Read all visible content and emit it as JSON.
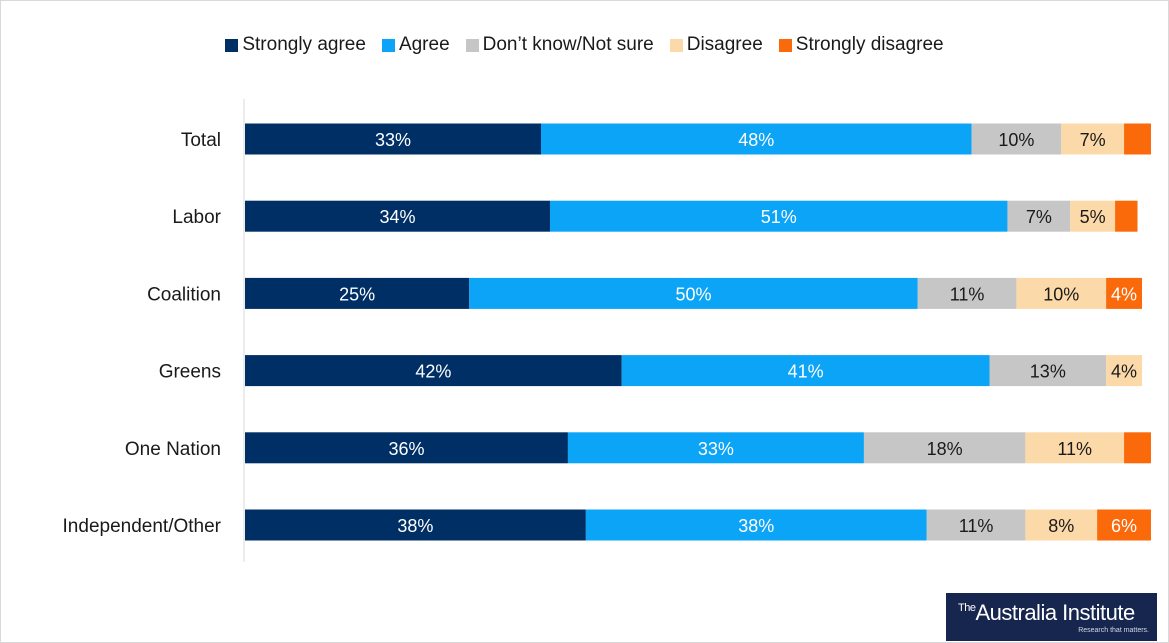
{
  "colors": {
    "strongly_agree": "#002f66",
    "agree": "#0ba4f6",
    "dont_know": "#c6c6c6",
    "disagree": "#fcd9a8",
    "strongly_disagree": "#fa6a0a"
  },
  "chart_data": {
    "type": "bar",
    "orientation": "horizontal",
    "stacked": true,
    "legend_position": "top",
    "grid": false,
    "xlim": [
      0,
      100
    ],
    "categories": [
      "Total",
      "Labor",
      "Coalition",
      "Greens",
      "One Nation",
      "Independent/Other"
    ],
    "series": [
      {
        "name": "Strongly agree",
        "color": "#002f66",
        "label_color": "#ffffff",
        "values": [
          33,
          34,
          25,
          42,
          36,
          38
        ],
        "labels": [
          "33%",
          "34%",
          "25%",
          "42%",
          "36%",
          "38%"
        ]
      },
      {
        "name": "Agree",
        "color": "#0ba4f6",
        "label_color": "#ffffff",
        "values": [
          48,
          51,
          50,
          41,
          33,
          38
        ],
        "labels": [
          "48%",
          "51%",
          "50%",
          "41%",
          "33%",
          "38%"
        ]
      },
      {
        "name": "Don’t know/Not sure",
        "color": "#c6c6c6",
        "label_color": "#1a1a1a",
        "values": [
          10,
          7,
          11,
          13,
          18,
          11
        ],
        "labels": [
          "10%",
          "7%",
          "11%",
          "13%",
          "18%",
          "11%"
        ]
      },
      {
        "name": "Disagree",
        "color": "#fcd9a8",
        "label_color": "#1a1a1a",
        "values": [
          7,
          5,
          10,
          4,
          11,
          8
        ],
        "labels": [
          "7%",
          "5%",
          "10%",
          "4%",
          "11%",
          "8%"
        ]
      },
      {
        "name": "Strongly disagree",
        "color": "#fa6a0a",
        "label_color": "#ffffff",
        "values": [
          3,
          2.5,
          4,
          0,
          3,
          6
        ],
        "labels": [
          "",
          "",
          "4%",
          "",
          "",
          "6%"
        ]
      }
    ]
  },
  "logo": {
    "the": "The",
    "name": "Australia Institute",
    "tagline": "Research that matters."
  }
}
